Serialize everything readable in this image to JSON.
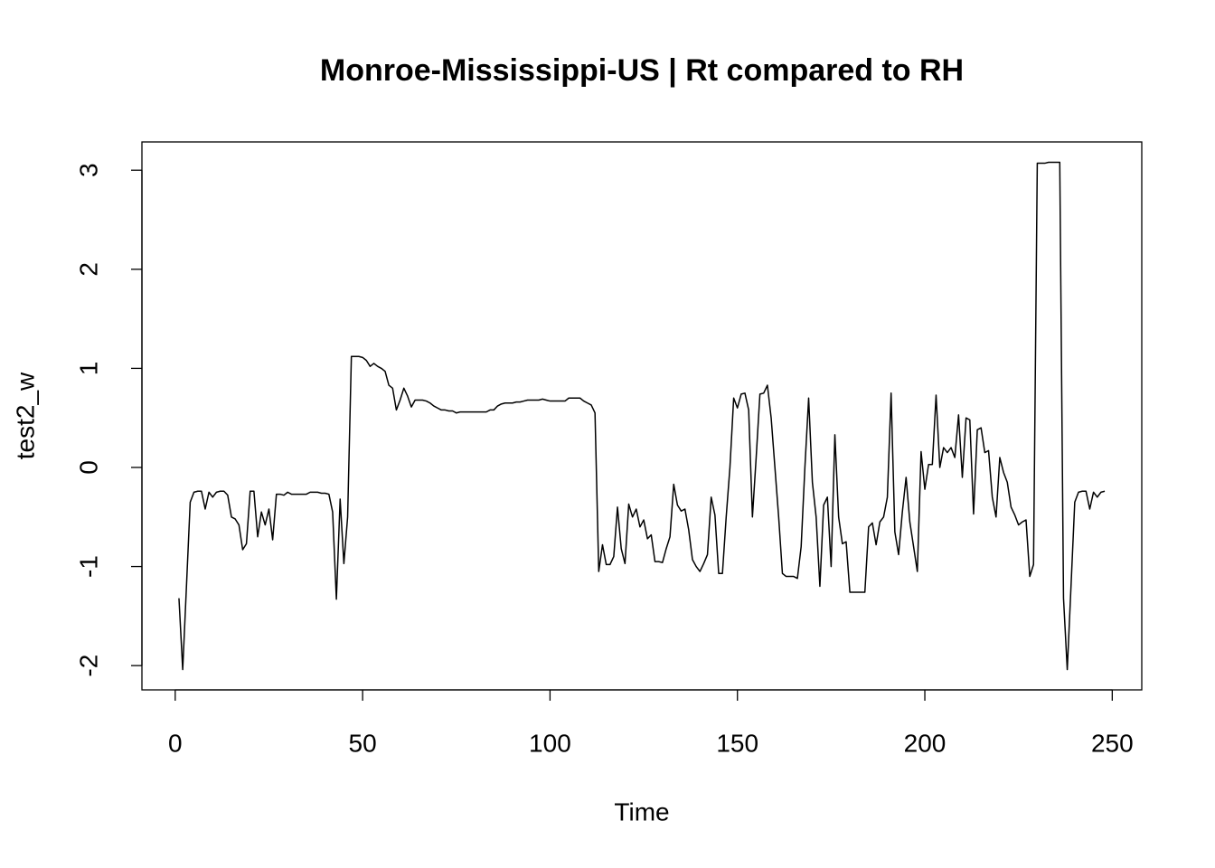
{
  "chart_data": {
    "type": "line",
    "title": "Monroe-Mississippi-US | Rt compared to RH",
    "xlabel": "Time",
    "ylabel": "test2_w",
    "x": [
      1,
      2,
      3,
      4,
      5,
      6,
      7,
      8,
      9,
      10,
      11,
      12,
      13,
      14,
      15,
      16,
      17,
      18,
      19,
      20,
      21,
      22,
      23,
      24,
      25,
      26,
      27,
      28,
      29,
      30,
      31,
      32,
      33,
      34,
      35,
      36,
      37,
      38,
      39,
      40,
      41,
      42,
      43,
      44,
      45,
      46,
      47,
      48,
      49,
      50,
      51,
      52,
      53,
      54,
      55,
      56,
      57,
      58,
      59,
      60,
      61,
      62,
      63,
      64,
      65,
      66,
      67,
      68,
      69,
      70,
      71,
      72,
      73,
      74,
      75,
      76,
      77,
      78,
      79,
      80,
      81,
      82,
      83,
      84,
      85,
      86,
      87,
      88,
      89,
      90,
      91,
      92,
      93,
      94,
      95,
      96,
      97,
      98,
      99,
      100,
      101,
      102,
      103,
      104,
      105,
      106,
      107,
      108,
      109,
      110,
      111,
      112,
      113,
      114,
      115,
      116,
      117,
      118,
      119,
      120,
      121,
      122,
      123,
      124,
      125,
      126,
      127,
      128,
      129,
      130,
      131,
      132,
      133,
      134,
      135,
      136,
      137,
      138,
      139,
      140,
      141,
      142,
      143,
      144,
      145,
      146,
      147,
      148,
      149,
      150,
      151,
      152,
      153,
      154,
      155,
      156,
      157,
      158,
      159,
      160,
      161,
      162,
      163,
      164,
      165,
      166,
      167,
      168,
      169,
      170,
      171,
      172,
      173,
      174,
      175,
      176,
      177,
      178,
      179,
      180,
      181,
      182,
      183,
      184,
      185,
      186,
      187,
      188,
      189,
      190,
      191,
      192,
      193,
      194,
      195,
      196,
      197,
      198,
      199,
      200,
      201,
      202,
      203,
      204,
      205,
      206,
      207,
      208,
      209,
      210,
      211,
      212,
      213,
      214,
      215,
      216,
      217,
      218,
      219,
      220,
      221,
      222,
      223,
      224,
      225,
      226,
      227,
      228,
      229,
      230,
      231,
      232,
      233,
      234,
      235,
      236,
      237,
      238,
      239,
      240,
      241,
      242,
      243,
      244,
      245,
      246,
      247,
      248
    ],
    "series": [
      {
        "color": "#000000",
        "values": [
          -1.32,
          -2.04,
          -1.2,
          -0.35,
          -0.25,
          -0.24,
          -0.24,
          -0.42,
          -0.25,
          -0.3,
          -0.25,
          -0.24,
          -0.24,
          -0.28,
          -0.5,
          -0.52,
          -0.58,
          -0.83,
          -0.77,
          -0.24,
          -0.24,
          -0.7,
          -0.45,
          -0.58,
          -0.42,
          -0.73,
          -0.27,
          -0.27,
          -0.28,
          -0.25,
          -0.27,
          -0.27,
          -0.27,
          -0.27,
          -0.27,
          -0.25,
          -0.25,
          -0.25,
          -0.26,
          -0.26,
          -0.27,
          -0.45,
          -1.33,
          -0.32,
          -0.97,
          -0.5,
          1.12,
          1.12,
          1.12,
          1.11,
          1.08,
          1.02,
          1.05,
          1.02,
          1.0,
          0.97,
          0.83,
          0.8,
          0.58,
          0.68,
          0.8,
          0.72,
          0.61,
          0.68,
          0.68,
          0.68,
          0.67,
          0.65,
          0.62,
          0.6,
          0.58,
          0.58,
          0.57,
          0.57,
          0.55,
          0.56,
          0.56,
          0.56,
          0.56,
          0.56,
          0.56,
          0.56,
          0.56,
          0.58,
          0.58,
          0.62,
          0.64,
          0.65,
          0.65,
          0.65,
          0.66,
          0.66,
          0.67,
          0.68,
          0.68,
          0.68,
          0.68,
          0.69,
          0.68,
          0.67,
          0.67,
          0.67,
          0.67,
          0.67,
          0.7,
          0.7,
          0.7,
          0.7,
          0.67,
          0.65,
          0.63,
          0.55,
          -1.05,
          -0.78,
          -0.98,
          -0.98,
          -0.9,
          -0.4,
          -0.82,
          -0.97,
          -0.37,
          -0.5,
          -0.42,
          -0.6,
          -0.53,
          -0.72,
          -0.68,
          -0.95,
          -0.95,
          -0.96,
          -0.82,
          -0.7,
          -0.17,
          -0.38,
          -0.44,
          -0.42,
          -0.63,
          -0.93,
          -1.0,
          -1.05,
          -0.97,
          -0.88,
          -0.3,
          -0.48,
          -1.07,
          -1.07,
          -0.5,
          0.0,
          0.7,
          0.6,
          0.74,
          0.75,
          0.58,
          -0.5,
          0.1,
          0.74,
          0.75,
          0.83,
          0.5,
          0.0,
          -0.5,
          -1.07,
          -1.1,
          -1.1,
          -1.1,
          -1.12,
          -0.8,
          0.0,
          0.7,
          -0.15,
          -0.5,
          -1.2,
          -0.38,
          -0.3,
          -1.0,
          0.33,
          -0.5,
          -0.77,
          -0.75,
          -1.26,
          -1.26,
          -1.26,
          -1.26,
          -1.26,
          -0.6,
          -0.56,
          -0.78,
          -0.55,
          -0.5,
          -0.3,
          0.75,
          -0.65,
          -0.88,
          -0.45,
          -0.1,
          -0.55,
          -0.8,
          -1.05,
          0.16,
          -0.22,
          0.03,
          0.03,
          0.73,
          0.0,
          0.2,
          0.15,
          0.2,
          0.1,
          0.53,
          -0.1,
          0.5,
          0.48,
          -0.47,
          0.38,
          0.4,
          0.15,
          0.17,
          -0.3,
          -0.5,
          0.1,
          -0.05,
          -0.15,
          -0.4,
          -0.48,
          -0.58,
          -0.55,
          -0.53,
          -1.1,
          -0.98,
          3.07,
          3.07,
          3.07,
          3.08,
          3.08,
          3.08,
          3.08,
          -1.32,
          -2.04,
          -1.2,
          -0.35,
          -0.25,
          -0.24,
          -0.24,
          -0.42,
          -0.25,
          -0.3,
          -0.25,
          -0.24
        ]
      }
    ],
    "xlim": [
      -8.88,
      257.88
    ],
    "ylim": [
      -2.245,
      3.285
    ],
    "xticks": [
      0,
      50,
      100,
      150,
      200,
      250
    ],
    "yticks": [
      -2,
      -1,
      0,
      1,
      2,
      3
    ]
  }
}
